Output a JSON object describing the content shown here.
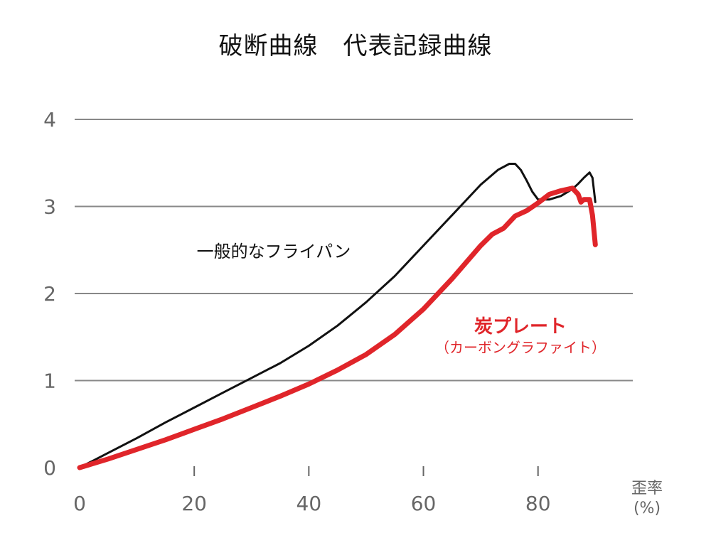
{
  "chart_data": {
    "type": "line",
    "title": "破断曲線　代表記録曲線",
    "xlabel_line1": "歪率",
    "xlabel_line2": "(%)",
    "xlim": [
      0,
      90
    ],
    "ylim": [
      0,
      4
    ],
    "x_ticks": [
      "0",
      "20",
      "40",
      "60",
      "80"
    ],
    "y_ticks": [
      "0",
      "1",
      "2",
      "3",
      "4"
    ],
    "grid": "horizontal",
    "series": [
      {
        "name": "一般的なフライパン",
        "color": "#111111",
        "x": [
          0,
          5,
          10,
          15,
          20,
          25,
          30,
          35,
          40,
          45,
          50,
          55,
          60,
          65,
          70,
          73,
          75,
          76,
          77,
          78,
          79,
          80,
          82,
          84,
          86,
          87,
          88,
          89,
          89.5,
          90
        ],
        "y": [
          0,
          0.17,
          0.34,
          0.52,
          0.69,
          0.86,
          1.03,
          1.2,
          1.4,
          1.63,
          1.9,
          2.2,
          2.55,
          2.9,
          3.25,
          3.42,
          3.49,
          3.49,
          3.42,
          3.3,
          3.17,
          3.08,
          3.08,
          3.12,
          3.2,
          3.26,
          3.33,
          3.39,
          3.33,
          3.05
        ]
      },
      {
        "name": "炭プレート",
        "subname": "（カーボングラファイト）",
        "color": "#e0252a",
        "x": [
          0,
          5,
          10,
          15,
          20,
          25,
          30,
          35,
          40,
          45,
          50,
          55,
          60,
          65,
          70,
          72,
          74,
          75,
          76,
          78,
          80,
          82,
          84,
          86,
          87,
          87.5,
          88,
          89,
          89.5,
          90
        ],
        "y": [
          0,
          0.1,
          0.21,
          0.32,
          0.44,
          0.56,
          0.69,
          0.82,
          0.96,
          1.12,
          1.3,
          1.53,
          1.82,
          2.17,
          2.55,
          2.68,
          2.75,
          2.82,
          2.89,
          2.95,
          3.04,
          3.14,
          3.18,
          3.21,
          3.14,
          3.05,
          3.08,
          3.08,
          2.9,
          2.56
        ]
      }
    ]
  }
}
